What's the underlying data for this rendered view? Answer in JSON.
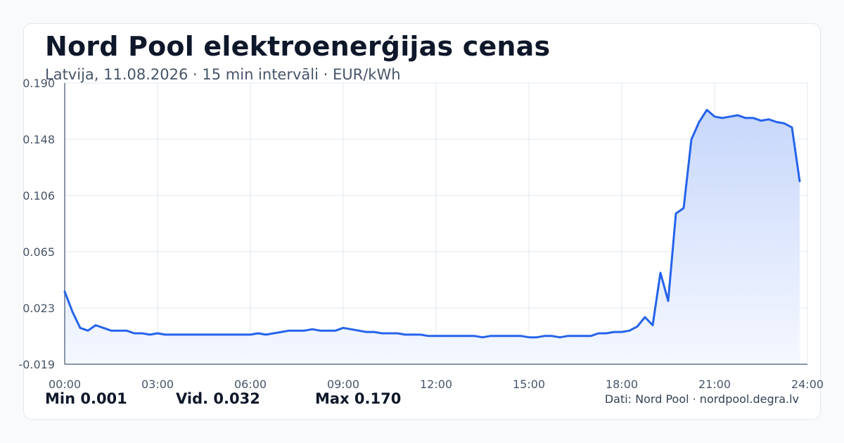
{
  "header": {
    "title": "Nord Pool elektroenerģijas cenas",
    "subtitle": "Latvija, 11.08.2026 · 15 min intervāli · EUR/kWh"
  },
  "stats": {
    "min": "Min 0.001",
    "avg": "Vid. 0.032",
    "max": "Max 0.170"
  },
  "source": "Dati: Nord Pool · nordpool.degra.lv",
  "colors": {
    "line": "#2563eb",
    "fill_top": "#c7d7fb",
    "fill_bottom": "#f5f8ff",
    "grid": "#e2e8f0",
    "axis": "#64748b",
    "tick_text": "#475569"
  },
  "chart_data": {
    "type": "area",
    "title": "Nord Pool elektroenerģijas cenas",
    "xlabel": "",
    "ylabel": "",
    "unit": "EUR/kWh",
    "xlim": [
      0,
      24
    ],
    "ylim": [
      -0.019,
      0.19
    ],
    "x_ticks": [
      "00:00",
      "03:00",
      "06:00",
      "09:00",
      "12:00",
      "15:00",
      "18:00",
      "21:00",
      "24:00"
    ],
    "y_ticks": [
      "0.190",
      "0.148",
      "0.106",
      "0.065",
      "0.023",
      "-0.019"
    ],
    "grid": true,
    "x": [
      0,
      0.25,
      0.5,
      0.75,
      1.0,
      1.25,
      1.5,
      1.75,
      2.0,
      2.25,
      2.5,
      2.75,
      3.0,
      3.25,
      3.5,
      3.75,
      4.0,
      4.5,
      5.0,
      5.5,
      6.0,
      6.25,
      6.5,
      6.75,
      7.0,
      7.25,
      7.5,
      7.75,
      8.0,
      8.25,
      8.5,
      8.75,
      9.0,
      9.25,
      9.5,
      9.75,
      10.0,
      10.25,
      10.5,
      10.75,
      11.0,
      11.25,
      11.5,
      11.75,
      12.0,
      12.5,
      13.0,
      13.25,
      13.5,
      13.75,
      14.0,
      14.25,
      14.5,
      14.75,
      15.0,
      15.25,
      15.5,
      15.75,
      16.0,
      16.25,
      16.5,
      16.75,
      17.0,
      17.25,
      17.5,
      17.75,
      18.0,
      18.25,
      18.5,
      18.75,
      19.0,
      19.25,
      19.5,
      19.75,
      20.0,
      20.25,
      20.5,
      20.75,
      21.0,
      21.25,
      21.5,
      21.75,
      22.0,
      22.25,
      22.5,
      22.75,
      23.0,
      23.25,
      23.5,
      23.75
    ],
    "series": [
      {
        "values": [
          0.035,
          0.02,
          0.008,
          0.006,
          0.01,
          0.008,
          0.006,
          0.006,
          0.006,
          0.004,
          0.004,
          0.003,
          0.004,
          0.003,
          0.003,
          0.003,
          0.003,
          0.003,
          0.003,
          0.003,
          0.003,
          0.004,
          0.003,
          0.004,
          0.005,
          0.006,
          0.006,
          0.006,
          0.007,
          0.006,
          0.006,
          0.006,
          0.008,
          0.007,
          0.006,
          0.005,
          0.005,
          0.004,
          0.004,
          0.004,
          0.003,
          0.003,
          0.003,
          0.002,
          0.002,
          0.002,
          0.002,
          0.002,
          0.001,
          0.002,
          0.002,
          0.002,
          0.002,
          0.002,
          0.001,
          0.001,
          0.002,
          0.002,
          0.001,
          0.002,
          0.002,
          0.002,
          0.002,
          0.004,
          0.004,
          0.005,
          0.005,
          0.006,
          0.009,
          0.016,
          0.01,
          0.049,
          0.028,
          0.093,
          0.097,
          0.148,
          0.161,
          0.17,
          0.165,
          0.164,
          0.165,
          0.166,
          0.164,
          0.164,
          0.162,
          0.163,
          0.161,
          0.16,
          0.157,
          0.117
        ]
      }
    ]
  }
}
